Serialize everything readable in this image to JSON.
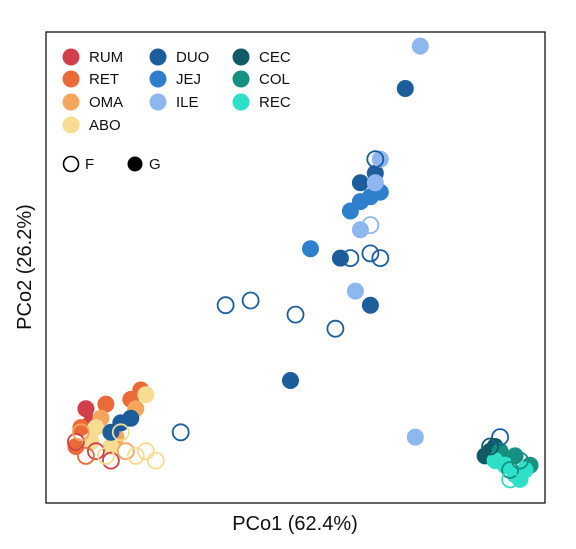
{
  "chart_data": {
    "type": "scatter",
    "title": "",
    "xlabel": "PCo1 (62.4%)",
    "ylabel": "PCo2 (26.2%)",
    "axis_ticks": false,
    "grid": false,
    "legend_placement": "top-left",
    "series": [
      {
        "name": "RUM",
        "color": "#d1404a"
      },
      {
        "name": "RET",
        "color": "#ea6a3a"
      },
      {
        "name": "OMA",
        "color": "#f5a55c"
      },
      {
        "name": "ABO",
        "color": "#f8dc92"
      },
      {
        "name": "DUO",
        "color": "#1c5d9c"
      },
      {
        "name": "JEJ",
        "color": "#2f80cc"
      },
      {
        "name": "ILE",
        "color": "#8fb7ef"
      },
      {
        "name": "CEC",
        "color": "#0f5a66"
      },
      {
        "name": "COL",
        "color": "#169080"
      },
      {
        "name": "REC",
        "color": "#2fe0c8"
      }
    ],
    "shape_legend": [
      {
        "name": "F",
        "filled": false
      },
      {
        "name": "G",
        "filled": true
      }
    ],
    "points": [
      {
        "s": "RUM",
        "t": "G",
        "x": 0.08,
        "y": 0.2
      },
      {
        "s": "RUM",
        "t": "G",
        "x": 0.09,
        "y": 0.17
      },
      {
        "s": "RUM",
        "t": "F",
        "x": 0.06,
        "y": 0.13
      },
      {
        "s": "RUM",
        "t": "F",
        "x": 0.13,
        "y": 0.09
      },
      {
        "s": "RUM",
        "t": "F",
        "x": 0.1,
        "y": 0.11
      },
      {
        "s": "RET",
        "t": "G",
        "x": 0.19,
        "y": 0.24
      },
      {
        "s": "RET",
        "t": "G",
        "x": 0.17,
        "y": 0.22
      },
      {
        "s": "RET",
        "t": "G",
        "x": 0.12,
        "y": 0.21
      },
      {
        "s": "RET",
        "t": "G",
        "x": 0.07,
        "y": 0.16
      },
      {
        "s": "RET",
        "t": "G",
        "x": 0.06,
        "y": 0.12
      },
      {
        "s": "RET",
        "t": "F",
        "x": 0.08,
        "y": 0.1
      },
      {
        "s": "OMA",
        "t": "G",
        "x": 0.18,
        "y": 0.2
      },
      {
        "s": "OMA",
        "t": "G",
        "x": 0.11,
        "y": 0.18
      },
      {
        "s": "OMA",
        "t": "G",
        "x": 0.14,
        "y": 0.14
      },
      {
        "s": "OMA",
        "t": "F",
        "x": 0.07,
        "y": 0.15
      },
      {
        "s": "OMA",
        "t": "F",
        "x": 0.16,
        "y": 0.11
      },
      {
        "s": "ABO",
        "t": "G",
        "x": 0.2,
        "y": 0.23
      },
      {
        "s": "ABO",
        "t": "G",
        "x": 0.1,
        "y": 0.16
      },
      {
        "s": "ABO",
        "t": "G",
        "x": 0.09,
        "y": 0.13
      },
      {
        "s": "ABO",
        "t": "G",
        "x": 0.13,
        "y": 0.12
      },
      {
        "s": "ABO",
        "t": "F",
        "x": 0.12,
        "y": 0.1
      },
      {
        "s": "ABO",
        "t": "F",
        "x": 0.18,
        "y": 0.1
      },
      {
        "s": "ABO",
        "t": "F",
        "x": 0.2,
        "y": 0.11
      },
      {
        "s": "ABO",
        "t": "F",
        "x": 0.15,
        "y": 0.15
      },
      {
        "s": "ABO",
        "t": "F",
        "x": 0.22,
        "y": 0.09
      },
      {
        "s": "DUO",
        "t": "G",
        "x": 0.15,
        "y": 0.17
      },
      {
        "s": "DUO",
        "t": "G",
        "x": 0.17,
        "y": 0.18
      },
      {
        "s": "DUO",
        "t": "G",
        "x": 0.13,
        "y": 0.15
      },
      {
        "s": "DUO",
        "t": "F",
        "x": 0.27,
        "y": 0.15
      },
      {
        "s": "DUO",
        "t": "F",
        "x": 0.36,
        "y": 0.42
      },
      {
        "s": "DUO",
        "t": "F",
        "x": 0.41,
        "y": 0.43
      },
      {
        "s": "DUO",
        "t": "F",
        "x": 0.5,
        "y": 0.4
      },
      {
        "s": "DUO",
        "t": "F",
        "x": 0.58,
        "y": 0.37
      },
      {
        "s": "DUO",
        "t": "G",
        "x": 0.49,
        "y": 0.26
      },
      {
        "s": "DUO",
        "t": "G",
        "x": 0.72,
        "y": 0.88
      },
      {
        "s": "DUO",
        "t": "G",
        "x": 0.59,
        "y": 0.52
      },
      {
        "s": "DUO",
        "t": "G",
        "x": 0.65,
        "y": 0.42
      },
      {
        "s": "DUO",
        "t": "G",
        "x": 0.63,
        "y": 0.68
      },
      {
        "s": "DUO",
        "t": "G",
        "x": 0.66,
        "y": 0.7
      },
      {
        "s": "DUO",
        "t": "F",
        "x": 0.61,
        "y": 0.52
      },
      {
        "s": "DUO",
        "t": "F",
        "x": 0.65,
        "y": 0.53
      },
      {
        "s": "DUO",
        "t": "F",
        "x": 0.67,
        "y": 0.52
      },
      {
        "s": "DUO",
        "t": "F",
        "x": 0.66,
        "y": 0.73
      },
      {
        "s": "DUO",
        "t": "F",
        "x": 0.91,
        "y": 0.14
      },
      {
        "s": "JEJ",
        "t": "G",
        "x": 0.53,
        "y": 0.54
      },
      {
        "s": "JEJ",
        "t": "G",
        "x": 0.61,
        "y": 0.62
      },
      {
        "s": "JEJ",
        "t": "G",
        "x": 0.63,
        "y": 0.64
      },
      {
        "s": "JEJ",
        "t": "G",
        "x": 0.67,
        "y": 0.66
      },
      {
        "s": "JEJ",
        "t": "G",
        "x": 0.65,
        "y": 0.65
      },
      {
        "s": "ILE",
        "t": "G",
        "x": 0.75,
        "y": 0.97
      },
      {
        "s": "ILE",
        "t": "G",
        "x": 0.67,
        "y": 0.73
      },
      {
        "s": "ILE",
        "t": "G",
        "x": 0.66,
        "y": 0.68
      },
      {
        "s": "ILE",
        "t": "G",
        "x": 0.63,
        "y": 0.58
      },
      {
        "s": "ILE",
        "t": "G",
        "x": 0.62,
        "y": 0.45
      },
      {
        "s": "ILE",
        "t": "G",
        "x": 0.74,
        "y": 0.14
      },
      {
        "s": "ILE",
        "t": "F",
        "x": 0.65,
        "y": 0.59
      },
      {
        "s": "CEC",
        "t": "G",
        "x": 0.88,
        "y": 0.1
      },
      {
        "s": "CEC",
        "t": "G",
        "x": 0.9,
        "y": 0.12
      },
      {
        "s": "CEC",
        "t": "G",
        "x": 0.89,
        "y": 0.11
      },
      {
        "s": "CEC",
        "t": "F",
        "x": 0.89,
        "y": 0.12
      },
      {
        "s": "COL",
        "t": "G",
        "x": 0.91,
        "y": 0.11
      },
      {
        "s": "COL",
        "t": "G",
        "x": 0.94,
        "y": 0.1
      },
      {
        "s": "COL",
        "t": "G",
        "x": 0.97,
        "y": 0.08
      },
      {
        "s": "COL",
        "t": "F",
        "x": 0.93,
        "y": 0.07
      },
      {
        "s": "COL",
        "t": "F",
        "x": 0.95,
        "y": 0.09
      },
      {
        "s": "REC",
        "t": "G",
        "x": 0.9,
        "y": 0.09
      },
      {
        "s": "REC",
        "t": "G",
        "x": 0.92,
        "y": 0.08
      },
      {
        "s": "REC",
        "t": "G",
        "x": 0.94,
        "y": 0.06
      },
      {
        "s": "REC",
        "t": "G",
        "x": 0.96,
        "y": 0.07
      },
      {
        "s": "REC",
        "t": "G",
        "x": 0.95,
        "y": 0.05
      },
      {
        "s": "REC",
        "t": "F",
        "x": 0.93,
        "y": 0.05
      }
    ]
  }
}
